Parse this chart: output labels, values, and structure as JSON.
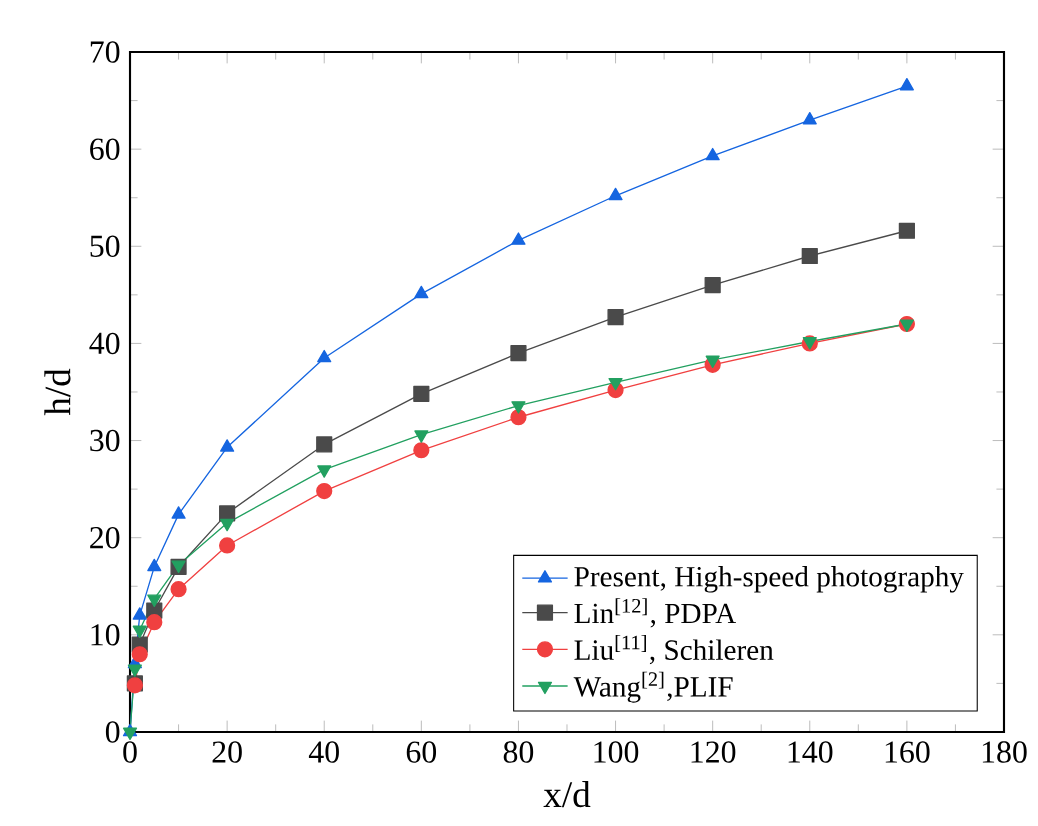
{
  "chart_data": {
    "type": "line",
    "xlabel": "x/d",
    "ylabel": "h/d",
    "xlim": [
      0,
      180
    ],
    "ylim": [
      0,
      70
    ],
    "xticks": [
      0,
      20,
      40,
      60,
      80,
      100,
      120,
      140,
      160,
      180
    ],
    "yticks": [
      0,
      10,
      20,
      30,
      40,
      50,
      60,
      70
    ],
    "legend": "bottom right",
    "series": [
      {
        "name": "Present, High-speed photography",
        "color": "#1565e0",
        "marker": "triangle",
        "x": [
          0,
          1,
          2,
          5,
          10,
          20,
          40,
          60,
          80,
          100,
          120,
          140,
          160
        ],
        "values": [
          0,
          7,
          12,
          17,
          22.4,
          29.3,
          38.5,
          45.1,
          50.6,
          55.2,
          59.3,
          63,
          66.5
        ]
      },
      {
        "name": "Lin$^{[12]}$, PDPA",
        "color": "#4a4a4a",
        "marker": "square",
        "x": [
          1,
          2,
          5,
          10,
          20,
          40,
          60,
          80,
          100,
          120,
          140,
          160
        ],
        "values": [
          5,
          9,
          12.5,
          17,
          22.5,
          29.6,
          34.8,
          39,
          42.7,
          46,
          49,
          51.6
        ]
      },
      {
        "name": "Liu$^{[11]}$, Schileren",
        "color": "#f04040",
        "marker": "circle",
        "x": [
          1,
          2,
          5,
          10,
          20,
          40,
          60,
          80,
          100,
          120,
          140,
          160
        ],
        "values": [
          4.8,
          8,
          11.3,
          14.7,
          19.2,
          24.8,
          29,
          32.4,
          35.2,
          37.8,
          40,
          42
        ]
      },
      {
        "name": "Wang$^{[2]}$,PLIF",
        "color": "#22a060",
        "marker": "triangle down",
        "x": [
          0,
          1,
          2,
          5,
          10,
          20,
          40,
          60,
          80,
          100,
          120,
          140,
          160
        ],
        "values": [
          0,
          6.5,
          10.5,
          13.7,
          17.2,
          21.5,
          27,
          30.6,
          33.6,
          36,
          38.3,
          40.2,
          42
        ]
      }
    ]
  }
}
